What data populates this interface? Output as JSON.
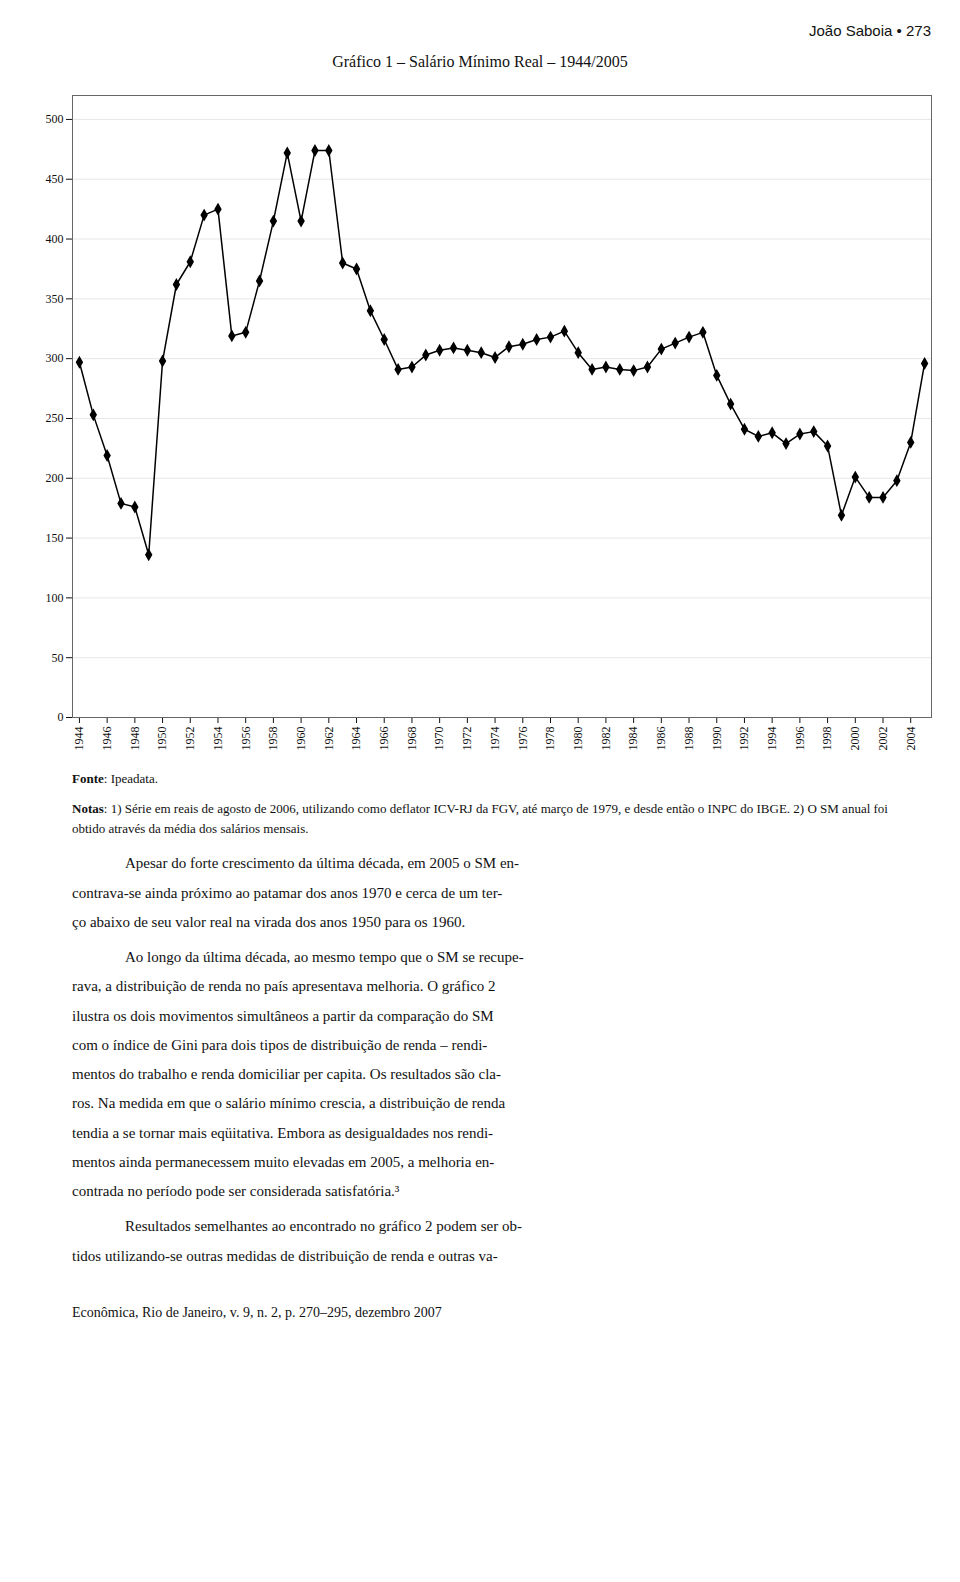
{
  "chart_data": {
    "type": "line",
    "header": "João Saboia • 273",
    "title": "Gráfico 1 – Salário Mínimo Real – 1944/2005",
    "source": "Fonte: Ipeadata.",
    "notes": "Notas: 1) Série em reais de agosto de 2006, utilizando como deflator ICV-RJ da FGV, até março de 1979, e desde então o INPC do IBGE. 2) O SM anual foi obtido através da média dos salários mensais.",
    "paragraphs": [
      [
        "Apesar do forte crescimento da última década, em 2005 o SM en-",
        "contrava-se ainda próximo ao patamar dos anos 1970 e cerca de um ter-",
        "ço abaixo de seu valor real na virada dos anos 1950 para os 1960."
      ],
      [
        "Ao longo da última década, ao mesmo tempo que o SM se recupe-",
        "rava, a distribuição de renda no país apresentava melhoria. O gráfico 2",
        "ilustra os dois movimentos simultâneos a partir da comparação do SM",
        "com o índice de Gini para dois tipos de distribuição de renda – rendi-",
        "mentos do trabalho e renda domiciliar per capita. Os resultados são cla-",
        "ros. Na medida em que o salário mínimo crescia, a distribuição de renda",
        "tendia a se tornar mais eqüitativa. Embora as desigualdades nos rendi-",
        "mentos ainda permanecessem muito elevadas em 2005, a melhoria en-",
        "contrada no período pode ser considerada satisfatória.³"
      ],
      [
        "Resultados semelhantes ao encontrado no gráfico 2 podem ser ob-",
        "tidos utilizando-se outras medidas de distribuição de renda e outras va-"
      ]
    ],
    "footer": "Econômica, Rio de Janeiro, v. 9, n. 2, p. 270–295, dezembro 2007",
    "x": [
      1944,
      1945,
      1946,
      1947,
      1948,
      1949,
      1950,
      1951,
      1952,
      1953,
      1954,
      1955,
      1956,
      1957,
      1958,
      1959,
      1960,
      1961,
      1962,
      1963,
      1964,
      1965,
      1966,
      1967,
      1968,
      1969,
      1970,
      1971,
      1972,
      1973,
      1974,
      1975,
      1976,
      1977,
      1978,
      1979,
      1980,
      1981,
      1982,
      1983,
      1984,
      1985,
      1986,
      1987,
      1988,
      1989,
      1990,
      1991,
      1992,
      1993,
      1994,
      1995,
      1996,
      1997,
      1998,
      1999,
      2000,
      2001,
      2002,
      2003,
      2004,
      2005
    ],
    "values": [
      297,
      253,
      219,
      179,
      176,
      136,
      298,
      362,
      381,
      420,
      425,
      319,
      322,
      365,
      415,
      472,
      415,
      474,
      474,
      380,
      375,
      340,
      316,
      291,
      293,
      303,
      307,
      309,
      307,
      305,
      301,
      310,
      312,
      316,
      318,
      323,
      305,
      291,
      293,
      291,
      290,
      293,
      308,
      313,
      318,
      322,
      286,
      262,
      241,
      235,
      238,
      229,
      237,
      239,
      227,
      169,
      201,
      184,
      184,
      198,
      230,
      296
    ],
    "xlim": [
      1943.5,
      2005.5
    ],
    "xticks": [
      1944,
      1946,
      1948,
      1950,
      1952,
      1954,
      1956,
      1958,
      1960,
      1962,
      1964,
      1966,
      1968,
      1970,
      1972,
      1974,
      1976,
      1978,
      1980,
      1982,
      1984,
      1986,
      1988,
      1990,
      1992,
      1994,
      1996,
      1998,
      2000,
      2002,
      2004
    ],
    "ylim": [
      0,
      520
    ],
    "yticks": [
      0,
      50,
      100,
      150,
      200,
      250,
      300,
      350,
      400,
      450,
      500
    ],
    "grid": true,
    "color": "#000000",
    "marker": "diamond",
    "line_style": "solid"
  }
}
